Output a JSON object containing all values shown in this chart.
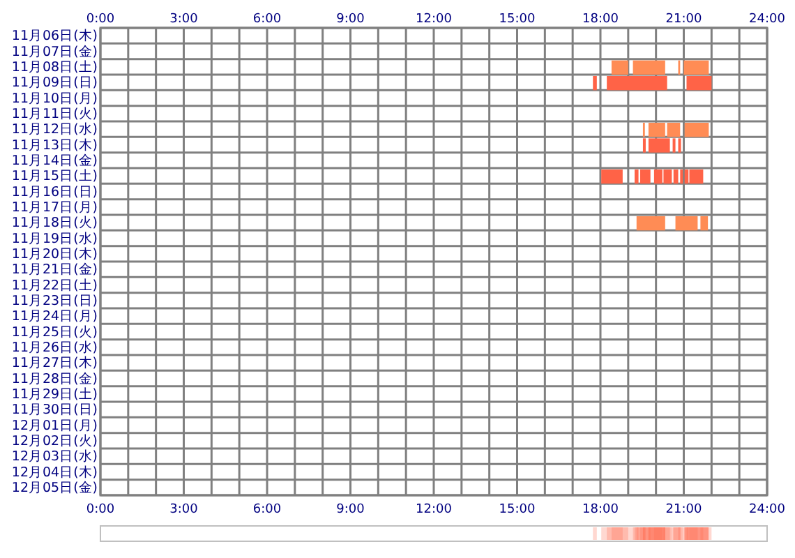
{
  "chart_data": {
    "type": "bar",
    "orientation": "horizontal",
    "categories": [
      "11月06日(木)",
      "11月07日(金)",
      "11月08日(土)",
      "11月09日(日)",
      "11月10日(月)",
      "11月11日(火)",
      "11月12日(水)",
      "11月13日(木)",
      "11月14日(金)",
      "11月15日(土)",
      "11月16日(日)",
      "11月17日(月)",
      "11月18日(火)",
      "11月19日(水)",
      "11月20日(木)",
      "11月21日(金)",
      "11月22日(土)",
      "11月23日(日)",
      "11月24日(月)",
      "11月25日(火)",
      "11月26日(水)",
      "11月27日(木)",
      "11月28日(金)",
      "11月29日(土)",
      "11月30日(日)",
      "12月01日(月)",
      "12月02日(火)",
      "12月03日(水)",
      "12月04日(木)",
      "12月05日(金)"
    ],
    "series": [
      {
        "base": [
          null,
          null,
          18.4,
          17.73,
          null,
          null,
          19.53,
          19.53,
          null,
          18.03,
          null,
          null,
          19.3,
          null,
          null,
          null,
          null,
          null,
          null,
          null,
          null,
          null,
          null,
          null,
          null,
          null,
          null,
          null,
          null,
          null
        ],
        "values": [
          null,
          null,
          0.6,
          0.14,
          null,
          null,
          0.07,
          0.1,
          null,
          0.77,
          null,
          null,
          1.03,
          null,
          null,
          null,
          null,
          null,
          null,
          null,
          null,
          null,
          null,
          null,
          null,
          null,
          null,
          null,
          null,
          null
        ],
        "colors": [
          null,
          null,
          "#ff8c55",
          "#ff6347",
          null,
          null,
          "#ff8c55",
          "#ff6347",
          null,
          "#ff6347",
          null,
          null,
          "#ff8c55",
          null,
          null,
          null,
          null,
          null,
          null,
          null,
          null,
          null,
          null,
          null,
          null,
          null,
          null,
          null,
          null,
          null
        ]
      },
      {
        "base": [
          null,
          null,
          19.17,
          18.23,
          null,
          null,
          19.73,
          19.73,
          null,
          19.23,
          null,
          null,
          20.7,
          null,
          null,
          null,
          null,
          null,
          null,
          null,
          null,
          null,
          null,
          null,
          null,
          null,
          null,
          null,
          null,
          null
        ],
        "values": [
          null,
          null,
          1.16,
          2.17,
          null,
          null,
          0.6,
          0.77,
          null,
          0.14,
          null,
          null,
          0.8,
          null,
          null,
          null,
          null,
          null,
          null,
          null,
          null,
          null,
          null,
          null,
          null,
          null,
          null,
          null,
          null,
          null
        ],
        "colors": [
          null,
          null,
          "#ff8c55",
          "#ff6347",
          null,
          null,
          "#ff8c55",
          "#ff6347",
          null,
          "#ff6347",
          null,
          null,
          "#ff8c55",
          null,
          null,
          null,
          null,
          null,
          null,
          null,
          null,
          null,
          null,
          null,
          null,
          null,
          null,
          null,
          null,
          null
        ]
      },
      {
        "base": [
          null,
          null,
          20.8,
          21.1,
          null,
          null,
          20.4,
          20.6,
          null,
          19.43,
          null,
          null,
          21.6,
          null,
          null,
          null,
          null,
          null,
          null,
          null,
          null,
          null,
          null,
          null,
          null,
          null,
          null,
          null,
          null,
          null
        ],
        "values": [
          null,
          null,
          0.07,
          0.9,
          null,
          null,
          0.47,
          0.1,
          null,
          0.37,
          null,
          null,
          0.27,
          null,
          null,
          null,
          null,
          null,
          null,
          null,
          null,
          null,
          null,
          null,
          null,
          null,
          null,
          null,
          null,
          null
        ],
        "colors": [
          null,
          null,
          "#ff8c55",
          "#ff6347",
          null,
          null,
          "#ff8c55",
          "#ff6347",
          null,
          "#ff6347",
          null,
          null,
          "#ff8c55",
          null,
          null,
          null,
          null,
          null,
          null,
          null,
          null,
          null,
          null,
          null,
          null,
          null,
          null,
          null,
          null,
          null
        ]
      },
      {
        "base": [
          null,
          null,
          21.0,
          null,
          null,
          null,
          21.03,
          20.8,
          null,
          19.93,
          null,
          null,
          null,
          null,
          null,
          null,
          null,
          null,
          null,
          null,
          null,
          null,
          null,
          null,
          null,
          null,
          null,
          null,
          null,
          null
        ],
        "values": [
          null,
          null,
          0.9,
          null,
          null,
          null,
          0.87,
          0.1,
          null,
          0.3,
          null,
          null,
          null,
          null,
          null,
          null,
          null,
          null,
          null,
          null,
          null,
          null,
          null,
          null,
          null,
          null,
          null,
          null,
          null,
          null
        ],
        "colors": [
          null,
          null,
          "#ff8c55",
          null,
          null,
          null,
          "#ff8c55",
          "#ff6347",
          null,
          "#ff6347",
          null,
          null,
          null,
          null,
          null,
          null,
          null,
          null,
          null,
          null,
          null,
          null,
          null,
          null,
          null,
          null,
          null,
          null,
          null,
          null
        ]
      },
      {
        "base": [
          null,
          null,
          null,
          null,
          null,
          null,
          null,
          null,
          null,
          20.27,
          null,
          null,
          null,
          null,
          null,
          null,
          null,
          null,
          null,
          null,
          null,
          null,
          null,
          null,
          null,
          null,
          null,
          null,
          null,
          null
        ],
        "values": [
          null,
          null,
          null,
          null,
          null,
          null,
          null,
          null,
          null,
          0.3,
          null,
          null,
          null,
          null,
          null,
          null,
          null,
          null,
          null,
          null,
          null,
          null,
          null,
          null,
          null,
          null,
          null,
          null,
          null,
          null
        ],
        "colors": [
          null,
          null,
          null,
          null,
          null,
          null,
          null,
          null,
          null,
          "#ff6347",
          null,
          null,
          null,
          null,
          null,
          null,
          null,
          null,
          null,
          null,
          null,
          null,
          null,
          null,
          null,
          null,
          null,
          null,
          null,
          null
        ]
      },
      {
        "base": [
          null,
          null,
          null,
          null,
          null,
          null,
          null,
          null,
          null,
          20.63,
          null,
          null,
          null,
          null,
          null,
          null,
          null,
          null,
          null,
          null,
          null,
          null,
          null,
          null,
          null,
          null,
          null,
          null,
          null,
          null
        ],
        "values": [
          null,
          null,
          null,
          null,
          null,
          null,
          null,
          null,
          null,
          0.17,
          null,
          null,
          null,
          null,
          null,
          null,
          null,
          null,
          null,
          null,
          null,
          null,
          null,
          null,
          null,
          null,
          null,
          null,
          null,
          null
        ],
        "colors": [
          null,
          null,
          null,
          null,
          null,
          null,
          null,
          null,
          null,
          "#ff6347",
          null,
          null,
          null,
          null,
          null,
          null,
          null,
          null,
          null,
          null,
          null,
          null,
          null,
          null,
          null,
          null,
          null,
          null,
          null,
          null
        ]
      },
      {
        "base": [
          null,
          null,
          null,
          null,
          null,
          null,
          null,
          null,
          null,
          20.87,
          null,
          null,
          null,
          null,
          null,
          null,
          null,
          null,
          null,
          null,
          null,
          null,
          null,
          null,
          null,
          null,
          null,
          null,
          null,
          null
        ],
        "values": [
          null,
          null,
          null,
          null,
          null,
          null,
          null,
          null,
          null,
          0.1,
          null,
          null,
          null,
          null,
          null,
          null,
          null,
          null,
          null,
          null,
          null,
          null,
          null,
          null,
          null,
          null,
          null,
          null,
          null,
          null
        ],
        "colors": [
          null,
          null,
          null,
          null,
          null,
          null,
          null,
          null,
          null,
          "#ff6347",
          null,
          null,
          null,
          null,
          null,
          null,
          null,
          null,
          null,
          null,
          null,
          null,
          null,
          null,
          null,
          null,
          null,
          null,
          null,
          null
        ]
      },
      {
        "base": [
          null,
          null,
          null,
          null,
          null,
          null,
          null,
          null,
          null,
          21.03,
          null,
          null,
          null,
          null,
          null,
          null,
          null,
          null,
          null,
          null,
          null,
          null,
          null,
          null,
          null,
          null,
          null,
          null,
          null,
          null
        ],
        "values": [
          null,
          null,
          null,
          null,
          null,
          null,
          null,
          null,
          null,
          0.14,
          null,
          null,
          null,
          null,
          null,
          null,
          null,
          null,
          null,
          null,
          null,
          null,
          null,
          null,
          null,
          null,
          null,
          null,
          null,
          null
        ],
        "colors": [
          null,
          null,
          null,
          null,
          null,
          null,
          null,
          null,
          null,
          "#ff6347",
          null,
          null,
          null,
          null,
          null,
          null,
          null,
          null,
          null,
          null,
          null,
          null,
          null,
          null,
          null,
          null,
          null,
          null,
          null,
          null
        ]
      },
      {
        "base": [
          null,
          null,
          null,
          null,
          null,
          null,
          null,
          null,
          null,
          21.2,
          null,
          null,
          null,
          null,
          null,
          null,
          null,
          null,
          null,
          null,
          null,
          null,
          null,
          null,
          null,
          null,
          null,
          null,
          null,
          null
        ],
        "values": [
          null,
          null,
          null,
          null,
          null,
          null,
          null,
          null,
          null,
          0.5,
          null,
          null,
          null,
          null,
          null,
          null,
          null,
          null,
          null,
          null,
          null,
          null,
          null,
          null,
          null,
          null,
          null,
          null,
          null,
          null
        ],
        "colors": [
          null,
          null,
          null,
          null,
          null,
          null,
          null,
          null,
          null,
          "#ff6347",
          null,
          null,
          null,
          null,
          null,
          null,
          null,
          null,
          null,
          null,
          null,
          null,
          null,
          null,
          null,
          null,
          null,
          null,
          null,
          null
        ]
      }
    ],
    "xlim": [
      0,
      24
    ],
    "xticks": [
      {
        "value": 0,
        "label": "0:00"
      },
      {
        "value": 1,
        "label": null
      },
      {
        "value": 2,
        "label": null
      },
      {
        "value": 3,
        "label": "3:00"
      },
      {
        "value": 4,
        "label": null
      },
      {
        "value": 5,
        "label": null
      },
      {
        "value": 6,
        "label": "6:00"
      },
      {
        "value": 7,
        "label": null
      },
      {
        "value": 8,
        "label": null
      },
      {
        "value": 9,
        "label": "9:00"
      },
      {
        "value": 10,
        "label": null
      },
      {
        "value": 11,
        "label": null
      },
      {
        "value": 12,
        "label": "12:00"
      },
      {
        "value": 13,
        "label": null
      },
      {
        "value": 14,
        "label": null
      },
      {
        "value": 15,
        "label": "15:00"
      },
      {
        "value": 16,
        "label": null
      },
      {
        "value": 17,
        "label": null
      },
      {
        "value": 18,
        "label": "18:00"
      },
      {
        "value": 19,
        "label": null
      },
      {
        "value": 20,
        "label": null
      },
      {
        "value": 21,
        "label": "21:00"
      },
      {
        "value": 22,
        "label": null
      },
      {
        "value": 23,
        "label": null
      },
      {
        "value": 24,
        "label": "24:00"
      }
    ],
    "x2lim": [
      0,
      24
    ],
    "x2ticks": [
      {
        "value": 0,
        "label": "0:00"
      },
      {
        "value": 3,
        "label": "3:00"
      },
      {
        "value": 6,
        "label": "6:00"
      },
      {
        "value": 9,
        "label": "9:00"
      },
      {
        "value": 12,
        "label": "12:00"
      },
      {
        "value": 15,
        "label": "15:00"
      },
      {
        "value": 18,
        "label": "18:00"
      },
      {
        "value": 21,
        "label": "21:00"
      },
      {
        "value": 24,
        "label": "24:00"
      }
    ],
    "grid": true
  }
}
